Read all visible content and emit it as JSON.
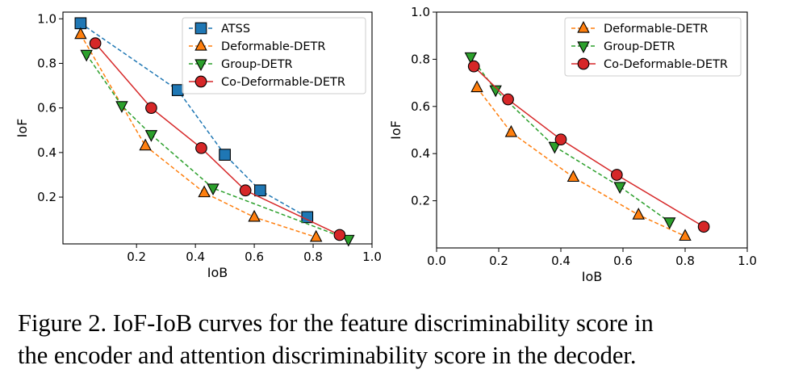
{
  "chart_data": [
    {
      "type": "line",
      "xlabel": "IoB",
      "ylabel": "IoF",
      "xlim": [
        -0.05,
        1.0
      ],
      "ylim": [
        -0.01,
        1.03
      ],
      "xticks": [
        0.2,
        0.4,
        0.6,
        0.8,
        1.0
      ],
      "xtick_labels": [
        "0.2",
        "0.4",
        "0.6",
        "0.8",
        "1.0"
      ],
      "yticks": [
        0.2,
        0.4,
        0.6,
        0.8,
        1.0
      ],
      "ytick_labels": [
        "0.2",
        "0.4",
        "0.6",
        "0.8",
        "1.0"
      ],
      "legend_position": "top-right",
      "series": [
        {
          "name": "ATSS",
          "style": "dashed",
          "marker": "square",
          "color": "#1f77b4",
          "x": [
            0.01,
            0.34,
            0.5,
            0.62,
            0.78
          ],
          "y": [
            0.98,
            0.68,
            0.39,
            0.23,
            0.11
          ]
        },
        {
          "name": "Deformable-DETR",
          "style": "dashed",
          "marker": "triangle-up",
          "color": "#ff7f0e",
          "x": [
            0.01,
            0.23,
            0.43,
            0.6,
            0.81
          ],
          "y": [
            0.93,
            0.43,
            0.22,
            0.11,
            0.02
          ]
        },
        {
          "name": "Group-DETR",
          "style": "dashed",
          "marker": "triangle-down",
          "color": "#2ca02c",
          "x": [
            0.03,
            0.15,
            0.25,
            0.46,
            0.92
          ],
          "y": [
            0.84,
            0.61,
            0.48,
            0.24,
            0.01
          ]
        },
        {
          "name": "Co-Deformable-DETR",
          "style": "solid",
          "marker": "circle",
          "color": "#d62728",
          "x": [
            0.06,
            0.25,
            0.42,
            0.57,
            0.89
          ],
          "y": [
            0.89,
            0.6,
            0.42,
            0.23,
            0.03
          ]
        }
      ]
    },
    {
      "type": "line",
      "xlabel": "IoB",
      "ylabel": "IoF",
      "xlim": [
        0.0,
        1.0
      ],
      "ylim": [
        0.0,
        1.0
      ],
      "xticks": [
        0.0,
        0.2,
        0.4,
        0.6,
        0.8,
        1.0
      ],
      "xtick_labels": [
        "0.0",
        "0.2",
        "0.4",
        "0.6",
        "0.8",
        "1.0"
      ],
      "yticks": [
        0.2,
        0.4,
        0.6,
        0.8,
        1.0
      ],
      "ytick_labels": [
        "0.2",
        "0.4",
        "0.6",
        "0.8",
        "1.0"
      ],
      "legend_position": "top-right",
      "series": [
        {
          "name": "Deformable-DETR",
          "style": "dashed",
          "marker": "triangle-up",
          "color": "#ff7f0e",
          "x": [
            0.13,
            0.24,
            0.44,
            0.65,
            0.8
          ],
          "y": [
            0.68,
            0.49,
            0.3,
            0.14,
            0.05
          ]
        },
        {
          "name": "Group-DETR",
          "style": "dashed",
          "marker": "triangle-down",
          "color": "#2ca02c",
          "x": [
            0.11,
            0.19,
            0.38,
            0.59,
            0.75
          ],
          "y": [
            0.81,
            0.67,
            0.43,
            0.26,
            0.11
          ]
        },
        {
          "name": "Co-Deformable-DETR",
          "style": "solid",
          "marker": "circle",
          "color": "#d62728",
          "x": [
            0.12,
            0.23,
            0.4,
            0.58,
            0.86
          ],
          "y": [
            0.77,
            0.63,
            0.46,
            0.31,
            0.09
          ]
        }
      ]
    }
  ],
  "caption": {
    "line1": "Figure 2. IoF-IoB curves for the feature discriminability score in",
    "line2": "the encoder and attention discriminability score in the decoder."
  }
}
